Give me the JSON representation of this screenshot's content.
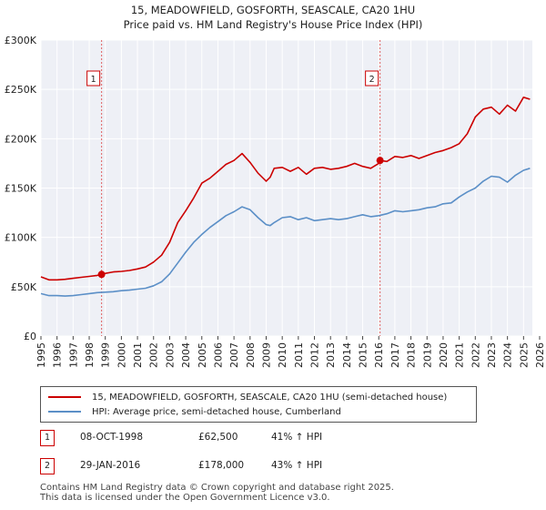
{
  "chart_data": {
    "type": "line",
    "title": "15, MEADOWFIELD, GOSFORTH, SEASCALE, CA20 1HU",
    "subtitle": "Price paid vs. HM Land Registry's House Price Index (HPI)",
    "xlim": [
      1995,
      2026
    ],
    "ylim": [
      0,
      300000
    ],
    "x_ticks": [
      1995,
      1996,
      1997,
      1998,
      1999,
      2000,
      2001,
      2002,
      2003,
      2004,
      2005,
      2006,
      2007,
      2008,
      2009,
      2010,
      2011,
      2012,
      2013,
      2014,
      2015,
      2016,
      2017,
      2018,
      2019,
      2020,
      2021,
      2022,
      2023,
      2024,
      2025,
      2026
    ],
    "y_ticks": [
      {
        "value": 0,
        "label": "£0"
      },
      {
        "value": 50000,
        "label": "£50K"
      },
      {
        "value": 100000,
        "label": "£100K"
      },
      {
        "value": 150000,
        "label": "£150K"
      },
      {
        "value": 200000,
        "label": "£200K"
      },
      {
        "value": 250000,
        "label": "£250K"
      },
      {
        "value": 300000,
        "label": "£300K"
      }
    ],
    "grid": true,
    "series": [
      {
        "name": "15, MEADOWFIELD, GOSFORTH, SEASCALE, CA20 1HU (semi-detached house)",
        "color": "#cc0000",
        "x": [
          1995.0,
          1995.5,
          1996.0,
          1996.5,
          1997.0,
          1997.5,
          1998.0,
          1998.5,
          1998.77,
          1999.0,
          1999.5,
          2000.0,
          2000.5,
          2001.0,
          2001.5,
          2002.0,
          2002.5,
          2003.0,
          2003.5,
          2004.0,
          2004.5,
          2005.0,
          2005.5,
          2006.0,
          2006.5,
          2007.0,
          2007.5,
          2008.0,
          2008.5,
          2009.0,
          2009.25,
          2009.5,
          2010.0,
          2010.5,
          2011.0,
          2011.5,
          2012.0,
          2012.5,
          2013.0,
          2013.5,
          2014.0,
          2014.5,
          2015.0,
          2015.5,
          2016.0,
          2016.08,
          2016.5,
          2017.0,
          2017.5,
          2018.0,
          2018.5,
          2019.0,
          2019.5,
          2020.0,
          2020.5,
          2021.0,
          2021.5,
          2022.0,
          2022.5,
          2023.0,
          2023.5,
          2024.0,
          2024.5,
          2025.0,
          2025.4
        ],
        "values": [
          60000,
          57000,
          57000,
          57500,
          58500,
          59500,
          60500,
          61500,
          62500,
          63500,
          65000,
          65500,
          66500,
          68000,
          70000,
          75000,
          82000,
          95000,
          115000,
          127000,
          140000,
          155000,
          160000,
          167000,
          174000,
          178000,
          185000,
          176000,
          165000,
          157000,
          161000,
          170000,
          171000,
          167000,
          171000,
          164000,
          170000,
          171000,
          169000,
          170000,
          172000,
          175000,
          172000,
          170000,
          175000,
          178000,
          177000,
          182000,
          181000,
          183000,
          180000,
          183000,
          186000,
          188000,
          191000,
          195000,
          205000,
          222000,
          230000,
          232000,
          225000,
          234000,
          228000,
          242000,
          240000
        ]
      },
      {
        "name": "HPI: Average price, semi-detached house, Cumberland",
        "color": "#5b8fc7",
        "x": [
          1995.0,
          1995.5,
          1996.0,
          1996.5,
          1997.0,
          1997.5,
          1998.0,
          1998.5,
          1999.0,
          1999.5,
          2000.0,
          2000.5,
          2001.0,
          2001.5,
          2002.0,
          2002.5,
          2003.0,
          2003.5,
          2004.0,
          2004.5,
          2005.0,
          2005.5,
          2006.0,
          2006.5,
          2007.0,
          2007.5,
          2008.0,
          2008.5,
          2009.0,
          2009.25,
          2009.5,
          2010.0,
          2010.5,
          2011.0,
          2011.5,
          2012.0,
          2012.5,
          2013.0,
          2013.5,
          2014.0,
          2014.5,
          2015.0,
          2015.5,
          2016.0,
          2016.5,
          2017.0,
          2017.5,
          2018.0,
          2018.5,
          2019.0,
          2019.5,
          2020.0,
          2020.5,
          2021.0,
          2021.5,
          2022.0,
          2022.5,
          2023.0,
          2023.5,
          2024.0,
          2024.5,
          2025.0,
          2025.4
        ],
        "values": [
          43000,
          41000,
          41000,
          40500,
          41000,
          42000,
          43000,
          44000,
          44500,
          45000,
          46000,
          46500,
          47500,
          48500,
          51000,
          55000,
          63000,
          74000,
          85000,
          95000,
          103000,
          110000,
          116000,
          122000,
          126000,
          131000,
          128000,
          120000,
          113000,
          112000,
          115000,
          120000,
          121000,
          118000,
          120000,
          117000,
          118000,
          119000,
          118000,
          119000,
          121000,
          123000,
          121000,
          122000,
          124000,
          127000,
          126000,
          127000,
          128000,
          130000,
          131000,
          134000,
          135000,
          141000,
          146000,
          150000,
          157000,
          162000,
          161000,
          156000,
          163000,
          168000,
          170000
        ]
      }
    ],
    "sales": [
      {
        "label": "1",
        "x": 1998.77,
        "value": 62500
      },
      {
        "label": "2",
        "x": 2016.08,
        "value": 178000
      }
    ]
  },
  "legend": {
    "items": [
      {
        "label": "15, MEADOWFIELD, GOSFORTH, SEASCALE, CA20 1HU (semi-detached house)",
        "color": "#cc0000"
      },
      {
        "label": "HPI: Average price, semi-detached house, Cumberland",
        "color": "#5b8fc7"
      }
    ]
  },
  "sales_table": [
    {
      "badge": "1",
      "date": "08-OCT-1998",
      "price": "£62,500",
      "hpi": "41% ↑ HPI"
    },
    {
      "badge": "2",
      "date": "29-JAN-2016",
      "price": "£178,000",
      "hpi": "43% ↑ HPI"
    }
  ],
  "footer": {
    "line1": "Contains HM Land Registry data © Crown copyright and database right 2025.",
    "line2": "This data is licensed under the Open Government Licence v3.0."
  }
}
